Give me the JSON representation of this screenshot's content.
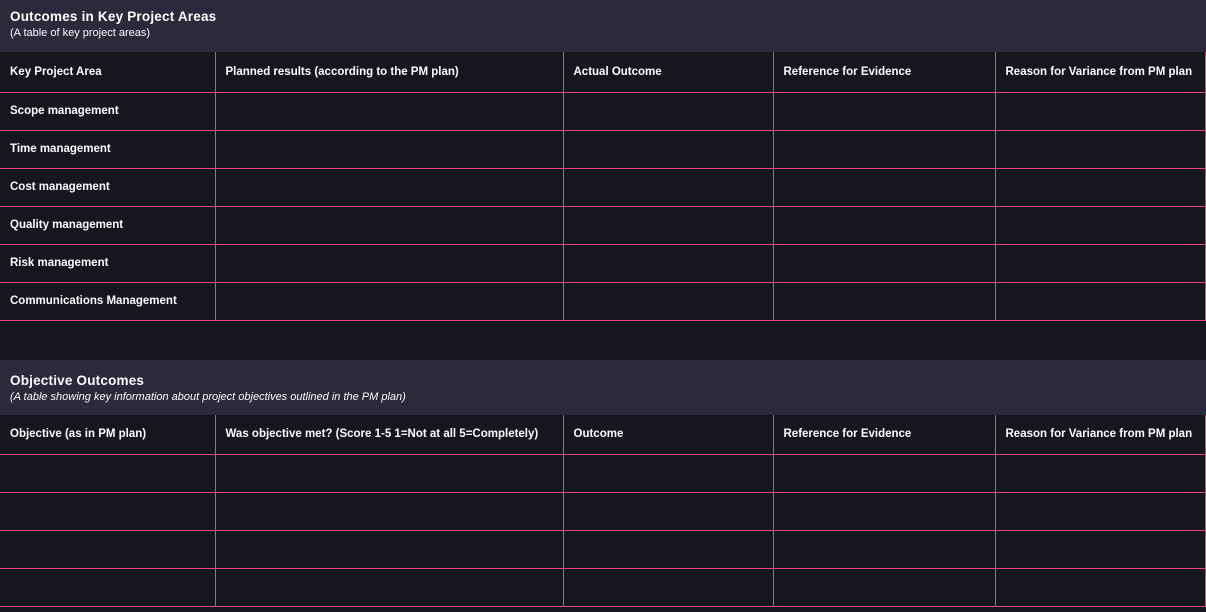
{
  "theme": {
    "bg": "#16161f",
    "band_bg": "#2a2a3a",
    "border_pink": "#eb4678",
    "text": "#fbfbfd"
  },
  "table1": {
    "title": "Outcomes in Key Project Areas",
    "subtitle": "(A table of key project areas)",
    "columns": [
      "Key Project Area",
      "Planned results (according to the PM plan)",
      "Actual Outcome",
      "Reference for Evidence",
      "Reason for Variance from PM plan"
    ],
    "rows": [
      [
        "Scope management",
        "",
        "",
        "",
        ""
      ],
      [
        "Time management",
        "",
        "",
        "",
        ""
      ],
      [
        "Cost management",
        "",
        "",
        "",
        ""
      ],
      [
        "Quality management",
        "",
        "",
        "",
        ""
      ],
      [
        "Risk management",
        "",
        "",
        "",
        ""
      ],
      [
        "Communications Management",
        "",
        "",
        "",
        ""
      ]
    ]
  },
  "table2": {
    "title": "Objective Outcomes",
    "subtitle": "(A table showing key information about project objectives outlined in the PM plan)",
    "columns": [
      "Objective (as in PM plan)",
      "Was objective met? (Score 1-5 1=Not at all 5=Completely)",
      "Outcome",
      "Reference for Evidence",
      "Reason for Variance from PM plan"
    ],
    "rows": [
      [
        "",
        "",
        "",
        "",
        ""
      ],
      [
        "",
        "",
        "",
        "",
        ""
      ],
      [
        "",
        "",
        "",
        "",
        ""
      ],
      [
        "",
        "",
        "",
        "",
        ""
      ]
    ]
  }
}
